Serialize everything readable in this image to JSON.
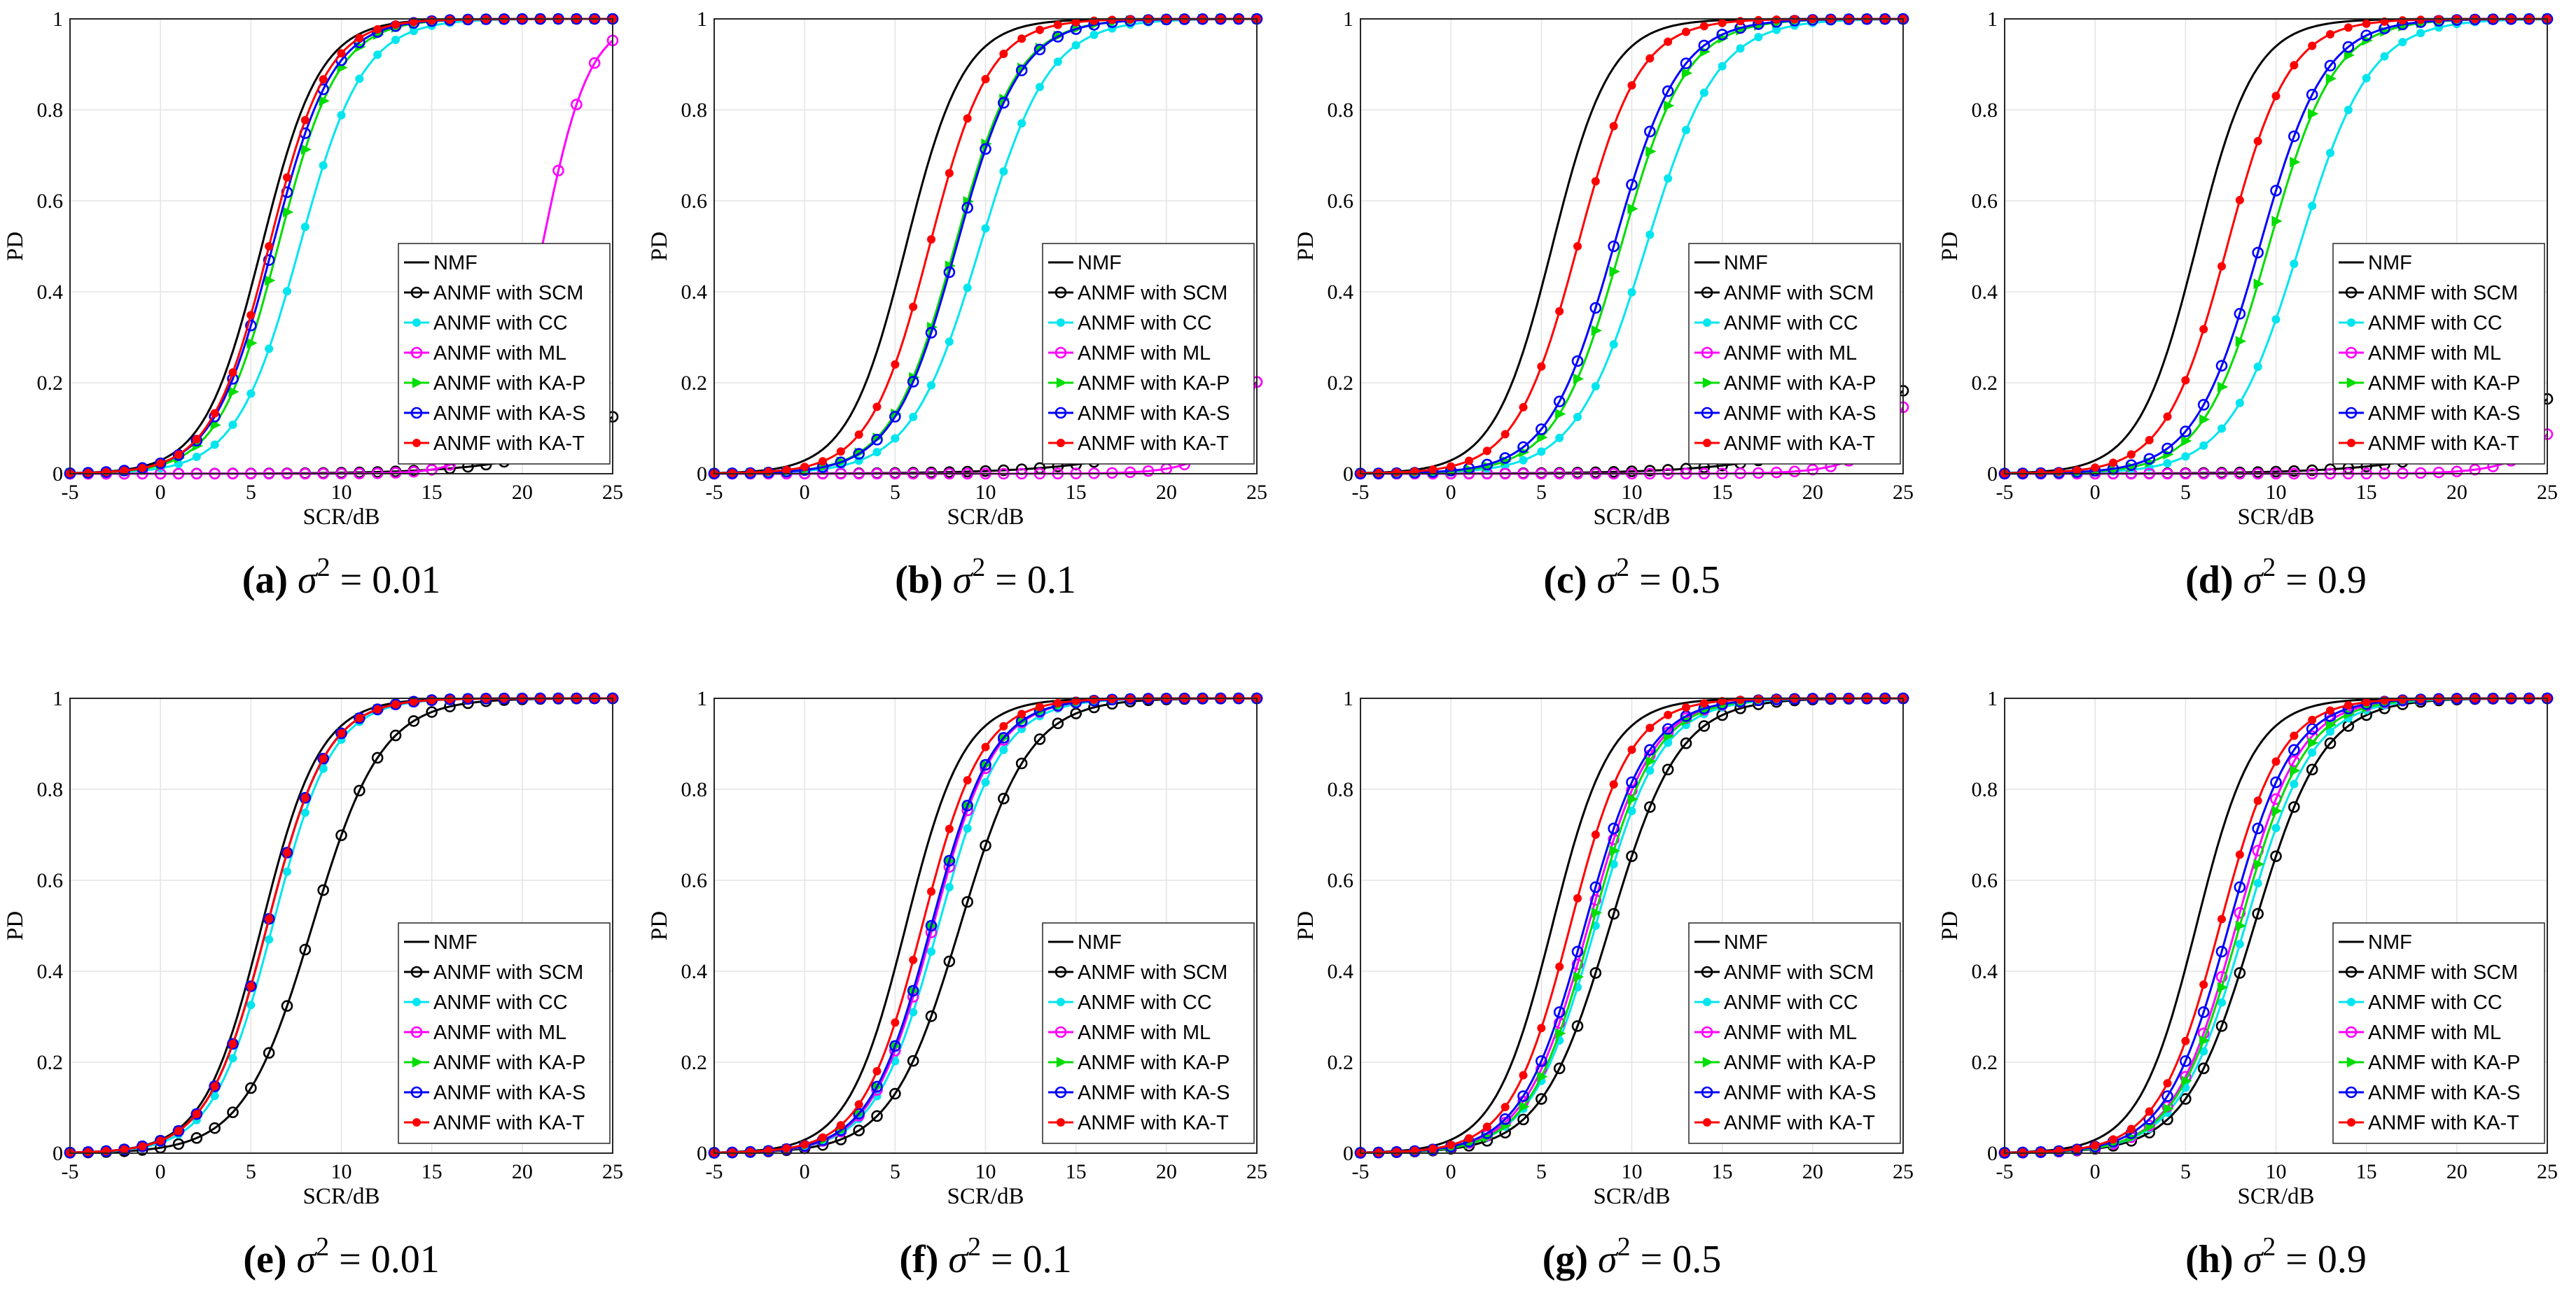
{
  "chart_data": [
    {
      "panel": "a",
      "caption": {
        "tag": "(a)",
        "variable": "σ",
        "exponent": "2",
        "equals": "=",
        "value": "0.01"
      },
      "type": "line",
      "xlabel": "SCR/dB",
      "ylabel": "PD",
      "xlim": [
        -5,
        25
      ],
      "ylim": [
        0,
        1
      ],
      "grid": true,
      "legend_position": "lower-right",
      "series": [
        {
          "name": "NMF",
          "mid": 5.6,
          "scale": 1.6
        },
        {
          "name": "ANMF with SCM",
          "mid": 32,
          "scale": 3.6
        },
        {
          "name": "ANMF with CC",
          "mid": 7.7,
          "scale": 1.75
        },
        {
          "name": "ANMF with ML",
          "mid": 21.1,
          "scale": 1.3
        },
        {
          "name": "ANMF with KA-P",
          "mid": 6.5,
          "scale": 1.65
        },
        {
          "name": "ANMF with KA-S",
          "mid": 6.2,
          "scale": 1.65
        },
        {
          "name": "ANMF with KA-T",
          "mid": 6.0,
          "scale": 1.6
        }
      ]
    },
    {
      "panel": "b",
      "caption": {
        "tag": "(b)",
        "variable": "σ",
        "exponent": "2",
        "equals": "=",
        "value": "0.1"
      },
      "type": "line",
      "xlabel": "SCR/dB",
      "ylabel": "PD",
      "xlim": [
        -5,
        25
      ],
      "ylim": [
        0,
        1
      ],
      "grid": true,
      "legend_position": "lower-right",
      "series": [
        {
          "name": "NMF",
          "mid": 5.6,
          "scale": 1.6
        },
        {
          "name": "ANMF with SCM",
          "mid": 30.5,
          "scale": 4.0
        },
        {
          "name": "ANMF with CC",
          "mid": 9.7,
          "scale": 1.9
        },
        {
          "name": "ANMF with ML",
          "mid": 27.2,
          "scale": 1.6
        },
        {
          "name": "ANMF with KA-P",
          "mid": 8.3,
          "scale": 1.75
        },
        {
          "name": "ANMF with KA-S",
          "mid": 8.4,
          "scale": 1.75
        },
        {
          "name": "ANMF with KA-T",
          "mid": 6.9,
          "scale": 1.65
        }
      ]
    },
    {
      "panel": "c",
      "caption": {
        "tag": "(c)",
        "variable": "σ",
        "exponent": "2",
        "equals": "=",
        "value": "0.5"
      },
      "type": "line",
      "xlabel": "SCR/dB",
      "ylabel": "PD",
      "xlim": [
        -5,
        25
      ],
      "ylim": [
        0,
        1
      ],
      "grid": true,
      "legend_position": "lower-right",
      "series": [
        {
          "name": "NMF",
          "mid": 5.6,
          "scale": 1.6
        },
        {
          "name": "ANMF with SCM",
          "mid": 31,
          "scale": 4.0
        },
        {
          "name": "ANMF with CC",
          "mid": 10.8,
          "scale": 1.95
        },
        {
          "name": "ANMF with ML",
          "mid": 28,
          "scale": 1.7
        },
        {
          "name": "ANMF with KA-P",
          "mid": 9.4,
          "scale": 1.8
        },
        {
          "name": "ANMF with KA-S",
          "mid": 9.0,
          "scale": 1.8
        },
        {
          "name": "ANMF with KA-T",
          "mid": 7.0,
          "scale": 1.7
        }
      ]
    },
    {
      "panel": "d",
      "caption": {
        "tag": "(d)",
        "variable": "σ",
        "exponent": "2",
        "equals": "=",
        "value": "0.9"
      },
      "type": "line",
      "xlabel": "SCR/dB",
      "ylabel": "PD",
      "xlim": [
        -5,
        25
      ],
      "ylim": [
        0,
        1
      ],
      "grid": true,
      "legend_position": "lower-right",
      "series": [
        {
          "name": "NMF",
          "mid": 5.6,
          "scale": 1.6
        },
        {
          "name": "ANMF with SCM",
          "mid": 31.5,
          "scale": 4.0
        },
        {
          "name": "ANMF with CC",
          "mid": 11.3,
          "scale": 1.95
        },
        {
          "name": "ANMF with ML",
          "mid": 29,
          "scale": 1.7
        },
        {
          "name": "ANMF with KA-P",
          "mid": 9.6,
          "scale": 1.8
        },
        {
          "name": "ANMF with KA-S",
          "mid": 9.1,
          "scale": 1.8
        },
        {
          "name": "ANMF with KA-T",
          "mid": 7.3,
          "scale": 1.7
        }
      ]
    },
    {
      "panel": "e",
      "caption": {
        "tag": "(e)",
        "variable": "σ",
        "exponent": "2",
        "equals": "=",
        "value": "0.01"
      },
      "type": "line",
      "xlabel": "SCR/dB",
      "ylabel": "PD",
      "xlim": [
        -5,
        25
      ],
      "ylim": [
        0,
        1
      ],
      "grid": true,
      "legend_position": "lower-right",
      "series": [
        {
          "name": "NMF",
          "mid": 5.6,
          "scale": 1.6
        },
        {
          "name": "ANMF with SCM",
          "mid": 8.4,
          "scale": 1.9
        },
        {
          "name": "ANMF with CC",
          "mid": 6.2,
          "scale": 1.65
        },
        {
          "name": "ANMF with ML",
          "mid": 5.9,
          "scale": 1.65
        },
        {
          "name": "ANMF with KA-P",
          "mid": 5.9,
          "scale": 1.65
        },
        {
          "name": "ANMF with KA-S",
          "mid": 5.9,
          "scale": 1.65
        },
        {
          "name": "ANMF with KA-T",
          "mid": 5.9,
          "scale": 1.65
        }
      ]
    },
    {
      "panel": "f",
      "caption": {
        "tag": "(f)",
        "variable": "σ",
        "exponent": "2",
        "equals": "=",
        "value": "0.1"
      },
      "type": "line",
      "xlabel": "SCR/dB",
      "ylabel": "PD",
      "xlim": [
        -5,
        25
      ],
      "ylim": [
        0,
        1
      ],
      "grid": true,
      "legend_position": "lower-right",
      "series": [
        {
          "name": "NMF",
          "mid": 5.6,
          "scale": 1.6
        },
        {
          "name": "ANMF with SCM",
          "mid": 8.6,
          "scale": 1.9
        },
        {
          "name": "ANMF with CC",
          "mid": 7.4,
          "scale": 1.75
        },
        {
          "name": "ANMF with ML",
          "mid": 7.1,
          "scale": 1.7
        },
        {
          "name": "ANMF with KA-P",
          "mid": 7.0,
          "scale": 1.7
        },
        {
          "name": "ANMF with KA-S",
          "mid": 7.0,
          "scale": 1.7
        },
        {
          "name": "ANMF with KA-T",
          "mid": 6.5,
          "scale": 1.65
        }
      ]
    },
    {
      "panel": "g",
      "caption": {
        "tag": "(g)",
        "variable": "σ",
        "exponent": "2",
        "equals": "=",
        "value": "0.5"
      },
      "type": "line",
      "xlabel": "SCR/dB",
      "ylabel": "PD",
      "xlim": [
        -5,
        25
      ],
      "ylim": [
        0,
        1
      ],
      "grid": true,
      "legend_position": "lower-right",
      "series": [
        {
          "name": "NMF",
          "mid": 5.6,
          "scale": 1.6
        },
        {
          "name": "ANMF with SCM",
          "mid": 8.8,
          "scale": 1.9
        },
        {
          "name": "ANMF with CC",
          "mid": 8.0,
          "scale": 1.8
        },
        {
          "name": "ANMF with ML",
          "mid": 7.6,
          "scale": 1.75
        },
        {
          "name": "ANMF with KA-P",
          "mid": 7.8,
          "scale": 1.75
        },
        {
          "name": "ANMF with KA-S",
          "mid": 7.4,
          "scale": 1.75
        },
        {
          "name": "ANMF with KA-T",
          "mid": 6.6,
          "scale": 1.65
        }
      ]
    },
    {
      "panel": "h",
      "caption": {
        "tag": "(h)",
        "variable": "σ",
        "exponent": "2",
        "equals": "=",
        "value": "0.9"
      },
      "type": "line",
      "xlabel": "SCR/dB",
      "ylabel": "PD",
      "xlim": [
        -5,
        25
      ],
      "ylim": [
        0,
        1
      ],
      "grid": true,
      "legend_position": "lower-right",
      "series": [
        {
          "name": "NMF",
          "mid": 5.6,
          "scale": 1.6
        },
        {
          "name": "ANMF with SCM",
          "mid": 8.8,
          "scale": 1.9
        },
        {
          "name": "ANMF with CC",
          "mid": 8.3,
          "scale": 1.85
        },
        {
          "name": "ANMF with ML",
          "mid": 7.8,
          "scale": 1.75
        },
        {
          "name": "ANMF with KA-P",
          "mid": 8.0,
          "scale": 1.8
        },
        {
          "name": "ANMF with KA-S",
          "mid": 7.4,
          "scale": 1.75
        },
        {
          "name": "ANMF with KA-T",
          "mid": 6.9,
          "scale": 1.7
        }
      ]
    }
  ],
  "styles": {
    "NMF": {
      "color": "#000000",
      "marker": "none"
    },
    "ANMF with SCM": {
      "color": "#000000",
      "marker": "circle"
    },
    "ANMF with CC": {
      "color": "#00e5ee",
      "marker": "dot"
    },
    "ANMF with ML": {
      "color": "#ff00ff",
      "marker": "circle"
    },
    "ANMF with KA-P": {
      "color": "#00dd00",
      "marker": "triangle"
    },
    "ANMF with KA-S": {
      "color": "#0000ff",
      "marker": "circle"
    },
    "ANMF with KA-T": {
      "color": "#ff0000",
      "marker": "dot"
    }
  },
  "x_ticks": [
    -5,
    0,
    5,
    10,
    15,
    20,
    25
  ],
  "y_ticks": [
    "0",
    "0.2",
    "0.4",
    "0.6",
    "0.8",
    "1"
  ]
}
